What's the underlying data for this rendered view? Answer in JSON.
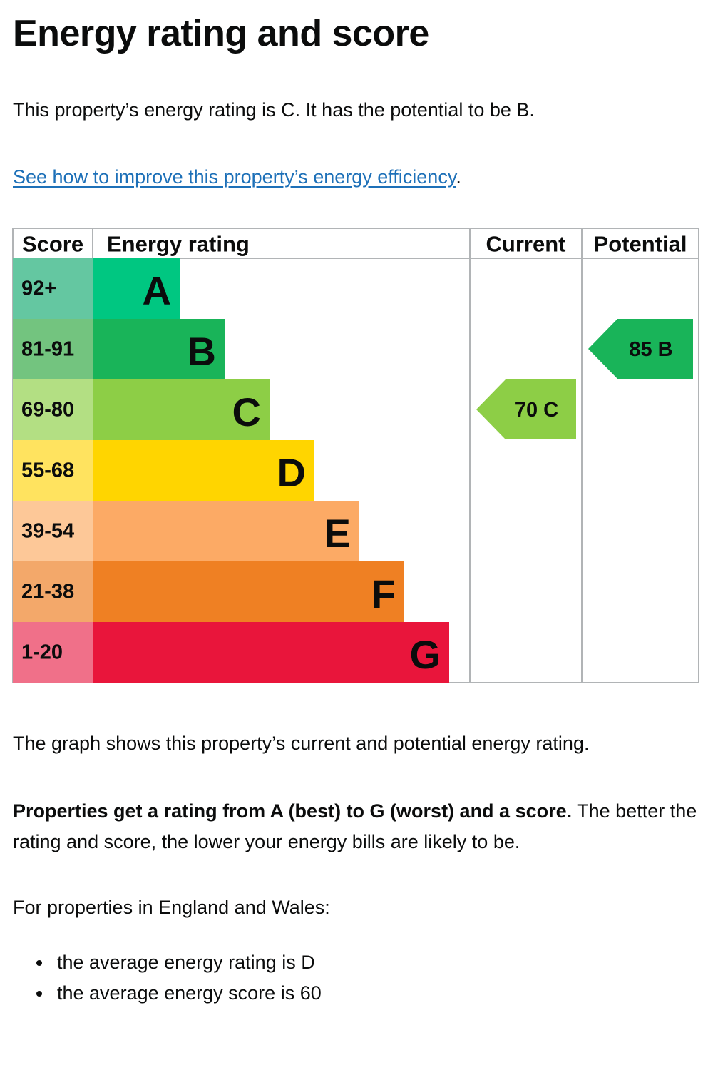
{
  "page": {
    "title": "Energy rating and score",
    "intro": "This property’s energy rating is C. It has the potential to be B.",
    "improve_link": "See how to improve this property’s energy efficiency",
    "improve_link_suffix": ".",
    "graph_caption": "The graph shows this property’s current and potential energy rating.",
    "ratings_bold": "Properties get a rating from A (best) to G (worst) and a score.",
    "ratings_rest": " The better the rating and score, the lower your energy bills are likely to be.",
    "regions_intro": "For properties in England and Wales:",
    "averages": [
      "the average energy rating is D",
      "the average energy score is 60"
    ]
  },
  "chart_data": {
    "type": "bar",
    "headers": {
      "score": "Score",
      "rating": "Energy rating",
      "current": "Current",
      "potential": "Potential"
    },
    "bands": [
      {
        "letter": "A",
        "range": "92+",
        "color": "#00c781",
        "range_color": "#64c7a1"
      },
      {
        "letter": "B",
        "range": "81-91",
        "color": "#19b459",
        "range_color": "#73c47f"
      },
      {
        "letter": "C",
        "range": "69-80",
        "color": "#8dce46",
        "range_color": "#b3df83"
      },
      {
        "letter": "D",
        "range": "55-68",
        "color": "#ffd500",
        "range_color": "#ffe35f"
      },
      {
        "letter": "E",
        "range": "39-54",
        "color": "#fcaa65",
        "range_color": "#fdc898"
      },
      {
        "letter": "F",
        "range": "21-38",
        "color": "#ef8023",
        "range_color": "#f3a86a"
      },
      {
        "letter": "G",
        "range": "1-20",
        "color": "#e9153b",
        "range_color": "#f07089"
      }
    ],
    "current": {
      "score": 70,
      "letter": "C",
      "label": "70 C",
      "color": "#8dce46"
    },
    "potential": {
      "score": 85,
      "letter": "B",
      "label": "85 B",
      "color": "#19b459"
    },
    "grid_color": "#b1b4b6"
  }
}
